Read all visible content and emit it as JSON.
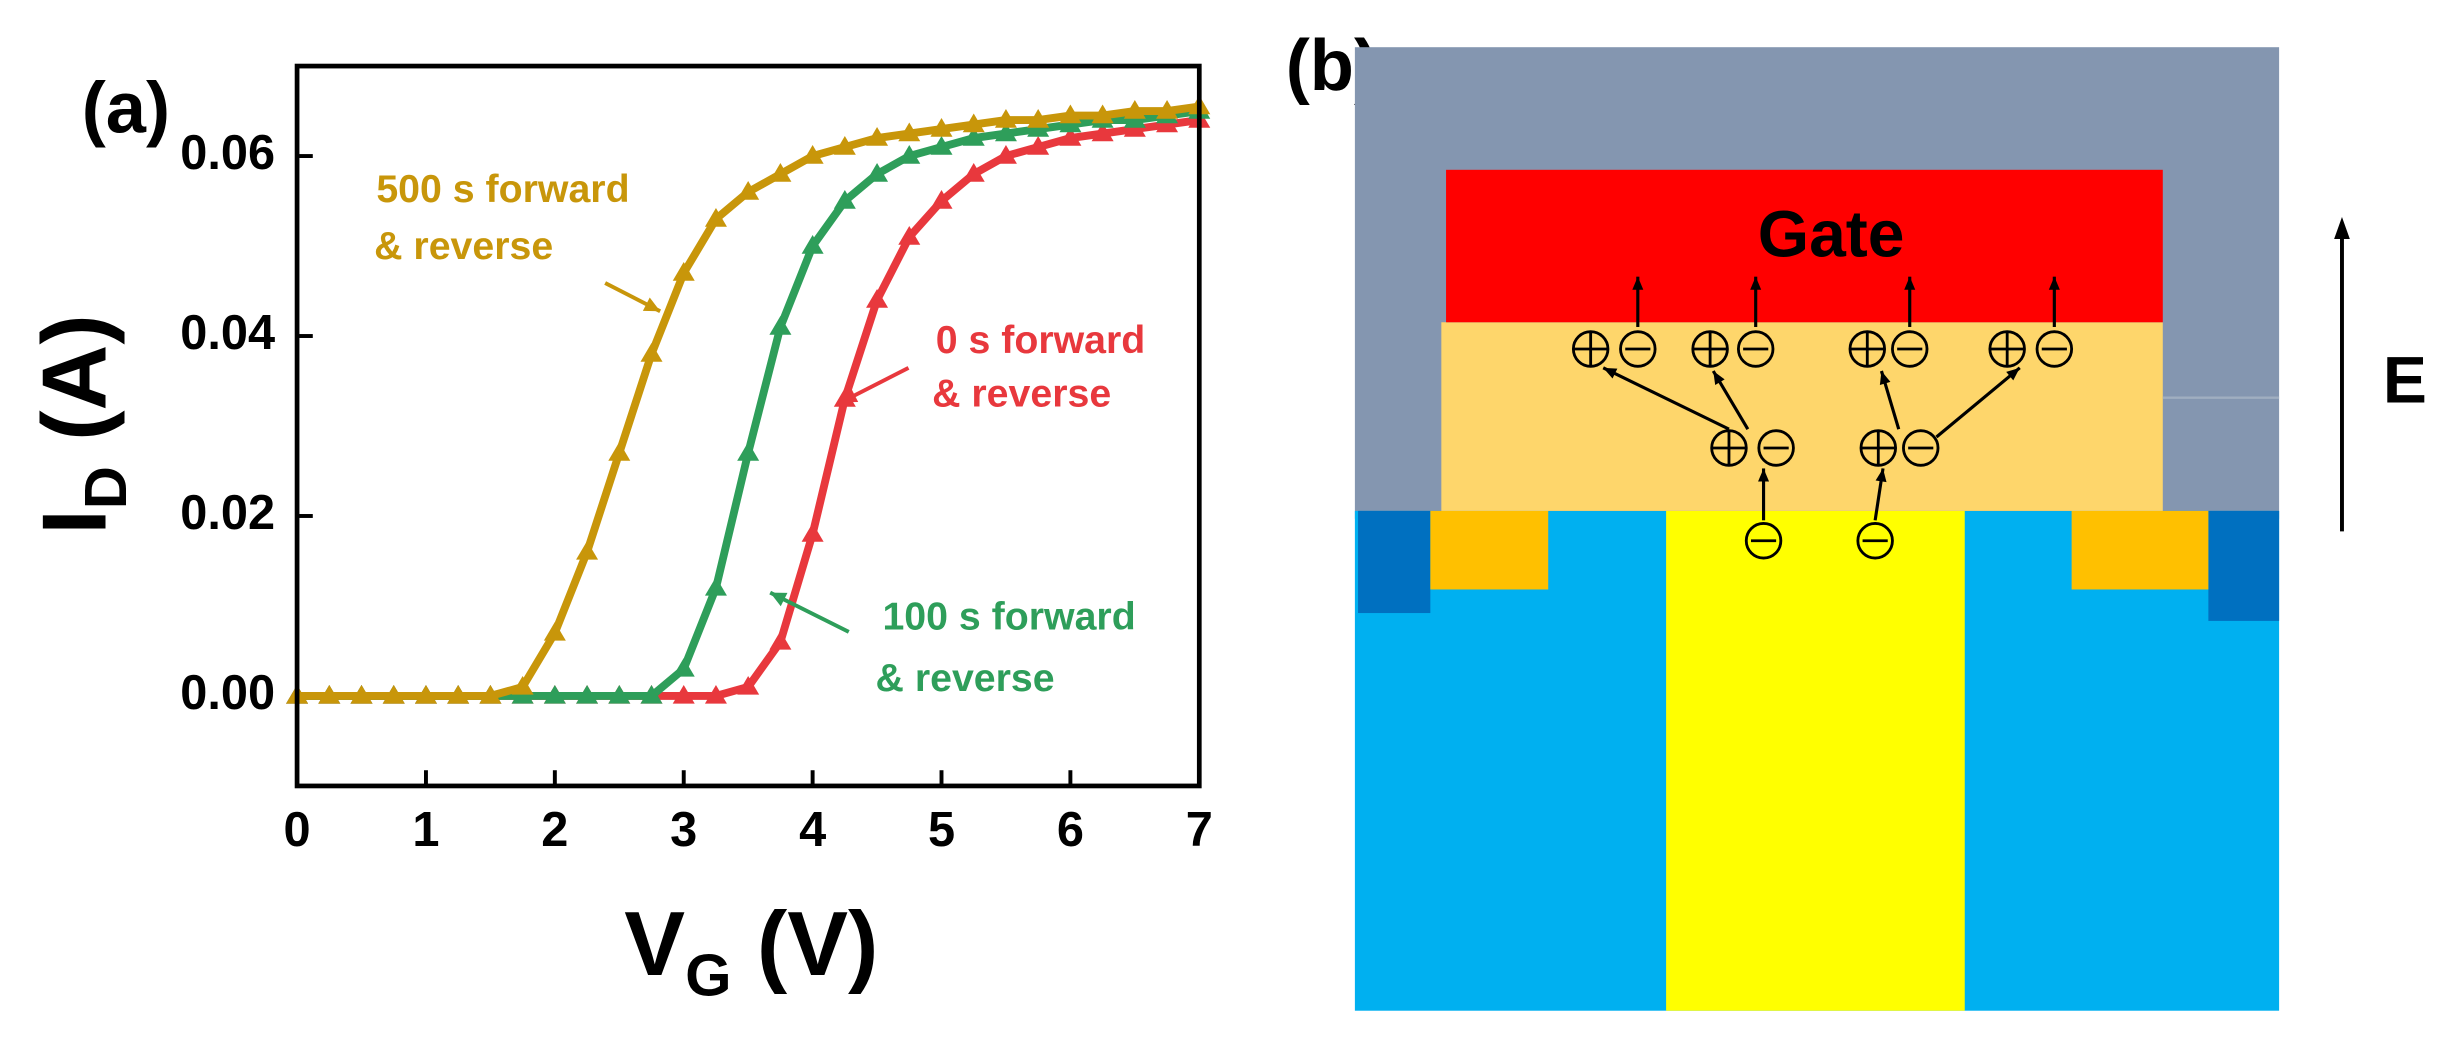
{
  "chart_data": {
    "type": "line",
    "panel_label": "(a)",
    "xlabel": [
      "V",
      "G",
      " (V)"
    ],
    "ylabel": [
      "I",
      "D",
      " (A)"
    ],
    "xlim": [
      0,
      7
    ],
    "ylim": [
      -0.01,
      0.07
    ],
    "xticks": [
      0,
      1,
      2,
      3,
      4,
      5,
      6,
      7
    ],
    "yticks": [
      {
        "value": 0,
        "label": "0.00"
      },
      0.02,
      0.04,
      0.06
    ],
    "x": [
      0,
      0.25,
      0.5,
      0.75,
      1,
      1.25,
      1.5,
      1.75,
      2,
      2.25,
      2.5,
      2.75,
      3,
      3.25,
      3.5,
      3.75,
      4,
      4.25,
      4.5,
      4.75,
      5,
      5.25,
      5.5,
      5.75,
      6,
      6.25,
      6.5,
      6.75,
      7
    ],
    "series": [
      {
        "name": [
          "500 s forward",
          "& reverse"
        ],
        "color": "#c8960a",
        "values": [
          0,
          0,
          0,
          0,
          0,
          0,
          0,
          0.001,
          0.007,
          0.016,
          0.027,
          0.038,
          0.047,
          0.053,
          0.056,
          0.058,
          0.06,
          0.061,
          0.062,
          0.0625,
          0.063,
          0.0635,
          0.064,
          0.064,
          0.0645,
          0.0645,
          0.065,
          0.065,
          0.0655
        ]
      },
      {
        "name": [
          "100 s forward",
          "& reverse"
        ],
        "color": "#2e9e5a",
        "values": [
          0,
          0,
          0,
          0,
          0,
          0,
          0,
          0,
          0,
          0,
          0,
          0,
          0.003,
          0.012,
          0.027,
          0.041,
          0.05,
          0.055,
          0.058,
          0.06,
          0.061,
          0.062,
          0.0625,
          0.063,
          0.0635,
          0.064,
          0.064,
          0.0645,
          0.065
        ]
      },
      {
        "name": [
          "0 s forward",
          "& reverse"
        ],
        "color": "#e8383d",
        "values": [
          0,
          0,
          0,
          0,
          0,
          0,
          0,
          0,
          0,
          0,
          0,
          0,
          0,
          0,
          0.001,
          0.006,
          0.018,
          0.033,
          0.044,
          0.051,
          0.055,
          0.058,
          0.06,
          0.061,
          0.062,
          0.0625,
          0.063,
          0.0635,
          0.064
        ]
      }
    ]
  },
  "diagram": {
    "panel_label": "(b)",
    "gate_label": "Gate",
    "field_label": "E"
  }
}
